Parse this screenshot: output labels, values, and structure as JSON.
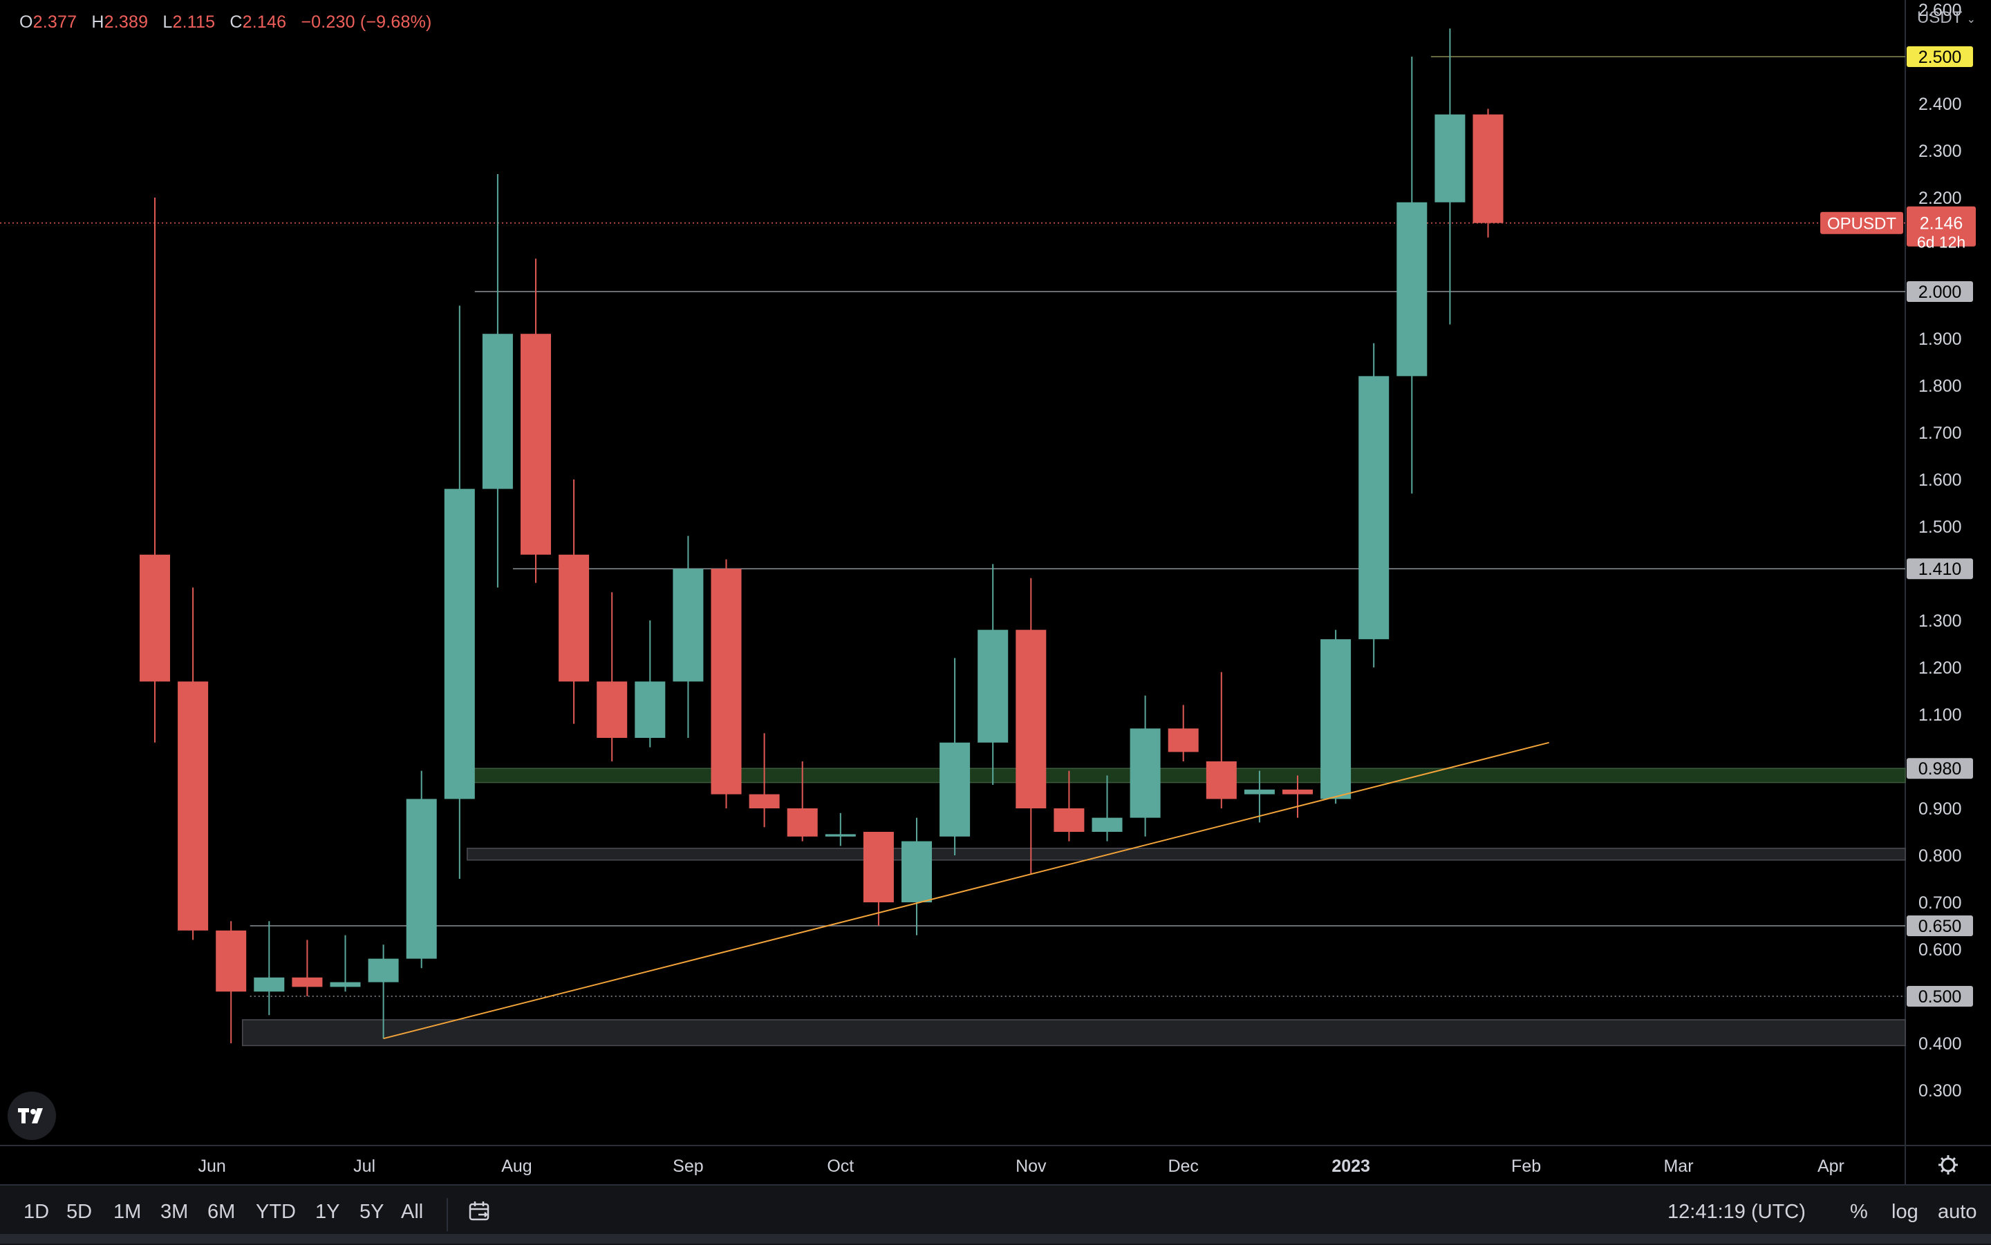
{
  "ohlc": {
    "o_label": "O",
    "o": "2.377",
    "h_label": "H",
    "h": "2.389",
    "l_label": "L",
    "l": "2.115",
    "c_label": "C",
    "c": "2.146",
    "change": "−0.230 (−9.68%)"
  },
  "currency": "USDT",
  "symbol_tag": "OPUSDT",
  "price_tag": {
    "price": "2.146",
    "countdown": "6d 12h"
  },
  "colors": {
    "up": "#5aa89c",
    "down": "#e05a55",
    "trendline": "#f2a33a",
    "zone_green": "#1c3a1c",
    "zone_gray": "#222326",
    "level": "#8d9299",
    "price_line": "#e05a55",
    "highlight_tag": "#f5e94a"
  },
  "chart_data": {
    "type": "candlestick",
    "symbol": "OPUSDT",
    "interval": "1W",
    "y_axis": {
      "min": 0.3,
      "max": 2.6,
      "scale": "linear",
      "ticks": [
        "2.600",
        "2.400",
        "2.300",
        "2.200",
        "1.900",
        "1.800",
        "1.700",
        "1.600",
        "1.500",
        "1.300",
        "1.200",
        "1.100",
        "0.900",
        "0.800",
        "0.700",
        "0.600",
        "0.400",
        "0.300"
      ]
    },
    "x_axis": {
      "labels": [
        {
          "label": "Jun",
          "week": 1.5
        },
        {
          "label": "Jul",
          "week": 5.5
        },
        {
          "label": "Aug",
          "week": 9.5
        },
        {
          "label": "Sep",
          "week": 14
        },
        {
          "label": "Oct",
          "week": 18
        },
        {
          "label": "Nov",
          "week": 23
        },
        {
          "label": "Dec",
          "week": 27
        },
        {
          "label": "2023",
          "week": 31.4,
          "bold": true
        },
        {
          "label": "Feb",
          "week": 36
        },
        {
          "label": "Mar",
          "week": 40
        },
        {
          "label": "Apr",
          "week": 44
        }
      ]
    },
    "candles": [
      {
        "o": 1.44,
        "h": 2.2,
        "l": 1.04,
        "c": 1.17
      },
      {
        "o": 1.17,
        "h": 1.37,
        "l": 0.62,
        "c": 0.64
      },
      {
        "o": 0.64,
        "h": 0.66,
        "l": 0.4,
        "c": 0.51
      },
      {
        "o": 0.51,
        "h": 0.66,
        "l": 0.46,
        "c": 0.54
      },
      {
        "o": 0.54,
        "h": 0.62,
        "l": 0.5,
        "c": 0.52
      },
      {
        "o": 0.52,
        "h": 0.63,
        "l": 0.51,
        "c": 0.53
      },
      {
        "o": 0.53,
        "h": 0.61,
        "l": 0.41,
        "c": 0.58
      },
      {
        "o": 0.58,
        "h": 0.98,
        "l": 0.56,
        "c": 0.92
      },
      {
        "o": 0.92,
        "h": 1.97,
        "l": 0.75,
        "c": 1.58
      },
      {
        "o": 1.58,
        "h": 2.25,
        "l": 1.37,
        "c": 1.91
      },
      {
        "o": 1.91,
        "h": 2.07,
        "l": 1.38,
        "c": 1.44
      },
      {
        "o": 1.44,
        "h": 1.6,
        "l": 1.08,
        "c": 1.17
      },
      {
        "o": 1.17,
        "h": 1.36,
        "l": 1.0,
        "c": 1.05
      },
      {
        "o": 1.05,
        "h": 1.3,
        "l": 1.03,
        "c": 1.17
      },
      {
        "o": 1.17,
        "h": 1.48,
        "l": 1.05,
        "c": 1.41
      },
      {
        "o": 1.41,
        "h": 1.43,
        "l": 0.9,
        "c": 0.93
      },
      {
        "o": 0.93,
        "h": 1.06,
        "l": 0.86,
        "c": 0.9
      },
      {
        "o": 0.9,
        "h": 1.0,
        "l": 0.83,
        "c": 0.84
      },
      {
        "o": 0.84,
        "h": 0.89,
        "l": 0.82,
        "c": 0.845
      },
      {
        "o": 0.85,
        "h": 0.85,
        "l": 0.65,
        "c": 0.7
      },
      {
        "o": 0.7,
        "h": 0.88,
        "l": 0.63,
        "c": 0.83
      },
      {
        "o": 0.84,
        "h": 1.22,
        "l": 0.8,
        "c": 1.04
      },
      {
        "o": 1.04,
        "h": 1.42,
        "l": 0.95,
        "c": 1.28
      },
      {
        "o": 1.28,
        "h": 1.39,
        "l": 0.76,
        "c": 0.9
      },
      {
        "o": 0.9,
        "h": 0.98,
        "l": 0.83,
        "c": 0.85
      },
      {
        "o": 0.85,
        "h": 0.97,
        "l": 0.83,
        "c": 0.88
      },
      {
        "o": 0.88,
        "h": 1.14,
        "l": 0.84,
        "c": 1.07
      },
      {
        "o": 1.07,
        "h": 1.12,
        "l": 1.0,
        "c": 1.02
      },
      {
        "o": 1.0,
        "h": 1.19,
        "l": 0.9,
        "c": 0.92
      },
      {
        "o": 0.93,
        "h": 0.98,
        "l": 0.87,
        "c": 0.94
      },
      {
        "o": 0.94,
        "h": 0.97,
        "l": 0.88,
        "c": 0.93
      },
      {
        "o": 0.92,
        "h": 1.28,
        "l": 0.91,
        "c": 1.26
      },
      {
        "o": 1.26,
        "h": 1.89,
        "l": 1.2,
        "c": 1.82
      },
      {
        "o": 1.82,
        "h": 2.5,
        "l": 1.57,
        "c": 2.19
      },
      {
        "o": 2.19,
        "h": 2.56,
        "l": 1.93,
        "c": 2.377
      },
      {
        "o": 2.377,
        "h": 2.389,
        "l": 2.115,
        "c": 2.146
      }
    ],
    "levels": [
      {
        "price": 2.5,
        "label": "2.500",
        "highlight": true,
        "from_week": 33.5
      },
      {
        "price": 2.0,
        "label": "2.000",
        "from_week": 8.4
      },
      {
        "price": 1.41,
        "label": "1.410",
        "from_week": 9.4
      },
      {
        "price": 0.65,
        "label": "0.650",
        "from_week": 2.5
      },
      {
        "price": 0.5,
        "label": "0.500",
        "dotted": true,
        "from_week": 2.5
      }
    ],
    "zones": [
      {
        "low": 0.955,
        "high": 0.985,
        "label": "0.980",
        "color": "green",
        "from_week": 7.7
      },
      {
        "low": 0.79,
        "high": 0.815,
        "color": "gray",
        "from_week": 8.2
      },
      {
        "low": 0.395,
        "high": 0.45,
        "color": "gray",
        "from_week": 2.3
      }
    ],
    "trendline": {
      "from": {
        "week": 6.0,
        "price": 0.41
      },
      "to": {
        "week": 36.6,
        "price": 1.04
      }
    },
    "last_price": 2.146
  },
  "toolbar": {
    "timeframes": [
      "1D",
      "5D",
      "1M",
      "3M",
      "6M",
      "YTD",
      "1Y",
      "5Y",
      "All"
    ],
    "clock": "12:41:19 (UTC)",
    "percent": "%",
    "log": "log",
    "auto": "auto"
  }
}
